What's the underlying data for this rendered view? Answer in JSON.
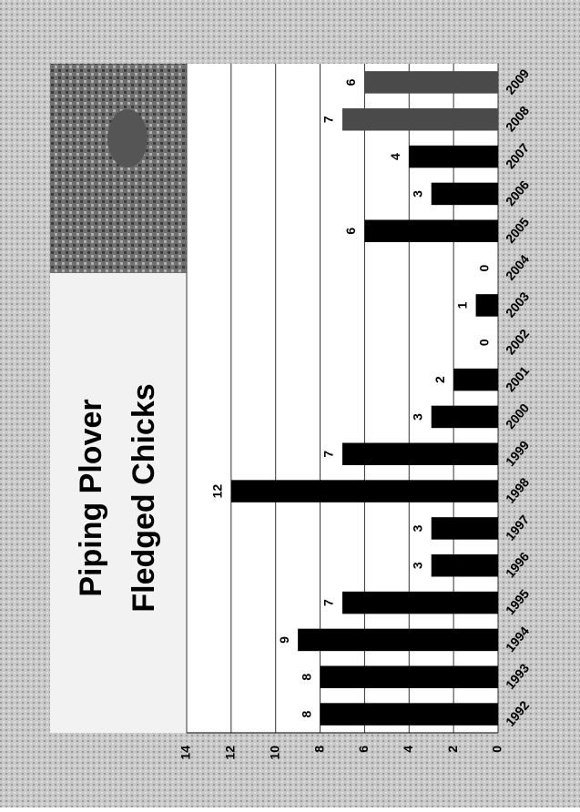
{
  "chart_data": {
    "type": "bar",
    "title": [
      "Piping Plover",
      "Fledged Chicks"
    ],
    "categories": [
      "1992",
      "1993",
      "1994",
      "1995",
      "1996",
      "1997",
      "1998",
      "1999",
      "2000",
      "2001",
      "2002",
      "2003",
      "2004",
      "2005",
      "2006",
      "2007",
      "2008",
      "2009"
    ],
    "series": [
      {
        "values": [
          8,
          8,
          9,
          7,
          3,
          3,
          12,
          7,
          3,
          2,
          0,
          1,
          0,
          6,
          3,
          4,
          7,
          6
        ],
        "colors": [
          "#000000",
          "#000000",
          "#000000",
          "#000000",
          "#000000",
          "#000000",
          "#000000",
          "#000000",
          "#000000",
          "#000000",
          "#000000",
          "#000000",
          "#000000",
          "#000000",
          "#000000",
          "#000000",
          "#4a4a4a",
          "#4a4a4a"
        ]
      }
    ],
    "ylim": [
      0,
      14
    ],
    "yticks": [
      0,
      2,
      4,
      6,
      8,
      10,
      12,
      14
    ],
    "grid": true
  }
}
